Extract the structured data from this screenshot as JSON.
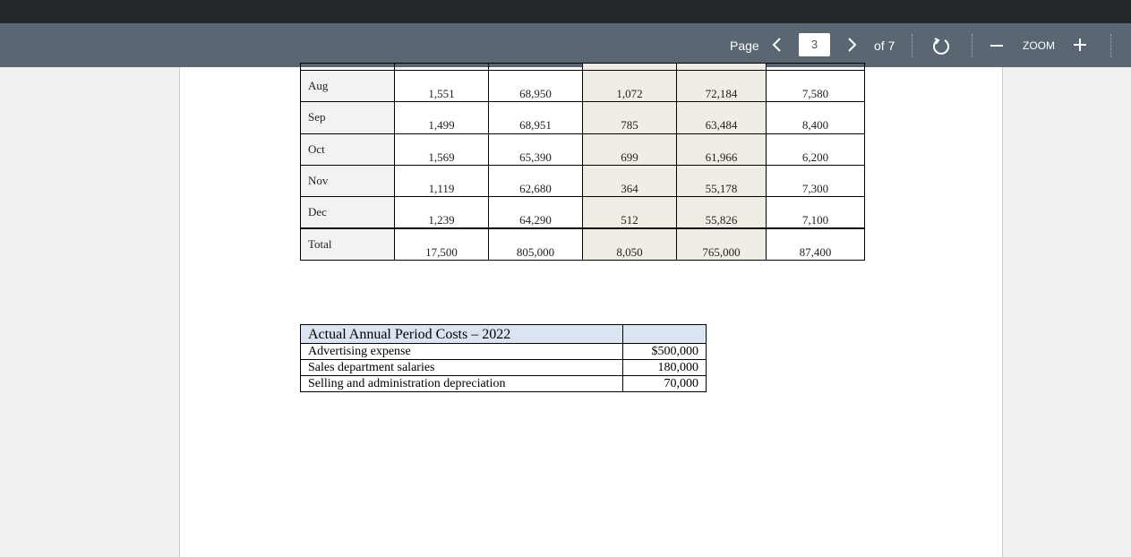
{
  "toolbar": {
    "page_label": "Page",
    "page": "3",
    "page_count": "of 7",
    "zoom": "ZOOM"
  },
  "table": {
    "rows": [
      [
        "Aug",
        "1,551",
        "68,950",
        "1,072",
        "72,184",
        "7,580"
      ],
      [
        "Sep",
        "1,499",
        "68,951",
        "785",
        "63,484",
        "8,400"
      ],
      [
        "Oct",
        "1,569",
        "65,390",
        "699",
        "61,966",
        "6,200"
      ],
      [
        "Nov",
        "1,119",
        "62,680",
        "364",
        "55,178",
        "7,300"
      ],
      [
        "Dec",
        "1,239",
        "64,290",
        "512",
        "55,826",
        "7,100"
      ],
      [
        "Total",
        "17,500",
        "805,000",
        "8,050",
        "765,000",
        "87,400"
      ]
    ]
  },
  "period_costs": {
    "title": "Actual Annual Period Costs – 2022",
    "rows": [
      [
        "Advertising expense",
        "$500,000"
      ],
      [
        "Sales department salaries",
        "180,000"
      ],
      [
        "Selling and administration depreciation",
        "70,000"
      ]
    ]
  }
}
